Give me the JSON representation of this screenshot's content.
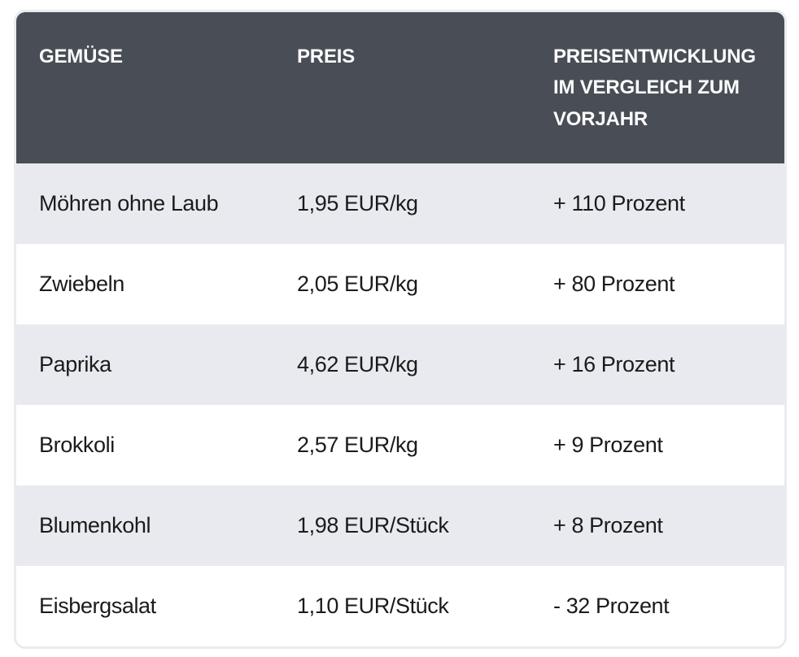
{
  "table": {
    "columns": [
      {
        "key": "name",
        "label": "GEMÜSE"
      },
      {
        "key": "price",
        "label": "PREIS"
      },
      {
        "key": "change",
        "label": "PREISENTWICKLUNG IM VERGLEICH ZUM VORJAHR"
      }
    ],
    "rows": [
      {
        "name": "Möhren ohne Laub",
        "price": "1,95 EUR/kg",
        "change": "+ 110 Prozent"
      },
      {
        "name": "Zwiebeln",
        "price": "2,05 EUR/kg",
        "change": "+ 80 Prozent"
      },
      {
        "name": "Paprika",
        "price": "4,62 EUR/kg",
        "change": "+ 16 Prozent"
      },
      {
        "name": "Brokkoli",
        "price": "2,57 EUR/kg",
        "change": "+ 9 Prozent"
      },
      {
        "name": "Blumenkohl",
        "price": "1,98 EUR/Stück",
        "change": "+ 8 Prozent"
      },
      {
        "name": "Eisbergsalat",
        "price": "1,10 EUR/Stück",
        "change": "- 32 Prozent"
      }
    ],
    "colors": {
      "header_bg": "#494e56",
      "header_text": "#fcfcfc",
      "row_bg": "#ffffff",
      "row_alt_bg": "#e9eaef",
      "body_text": "#1b1b1b",
      "card_border": "#e9ebf0"
    }
  },
  "chart_data": {
    "type": "table",
    "title": "",
    "columns": [
      "GEMÜSE",
      "PREIS",
      "PREISENTWICKLUNG IM VERGLEICH ZUM VORJAHR"
    ],
    "rows": [
      [
        "Möhren ohne Laub",
        "1,95 EUR/kg",
        "+ 110 Prozent"
      ],
      [
        "Zwiebeln",
        "2,05 EUR/kg",
        "+ 80 Prozent"
      ],
      [
        "Paprika",
        "4,62 EUR/kg",
        "+ 16 Prozent"
      ],
      [
        "Brokkoli",
        "2,57 EUR/kg",
        "+ 9 Prozent"
      ],
      [
        "Blumenkohl",
        "1,98 EUR/Stück",
        "+ 8 Prozent"
      ],
      [
        "Eisbergsalat",
        "1,10 EUR/Stück",
        "- 32 Prozent"
      ]
    ],
    "price_eur": [
      1.95,
      2.05,
      4.62,
      2.57,
      1.98,
      1.1
    ],
    "price_unit": [
      "kg",
      "kg",
      "kg",
      "kg",
      "Stück",
      "Stück"
    ],
    "change_percent": [
      110,
      80,
      16,
      9,
      8,
      -32
    ]
  }
}
